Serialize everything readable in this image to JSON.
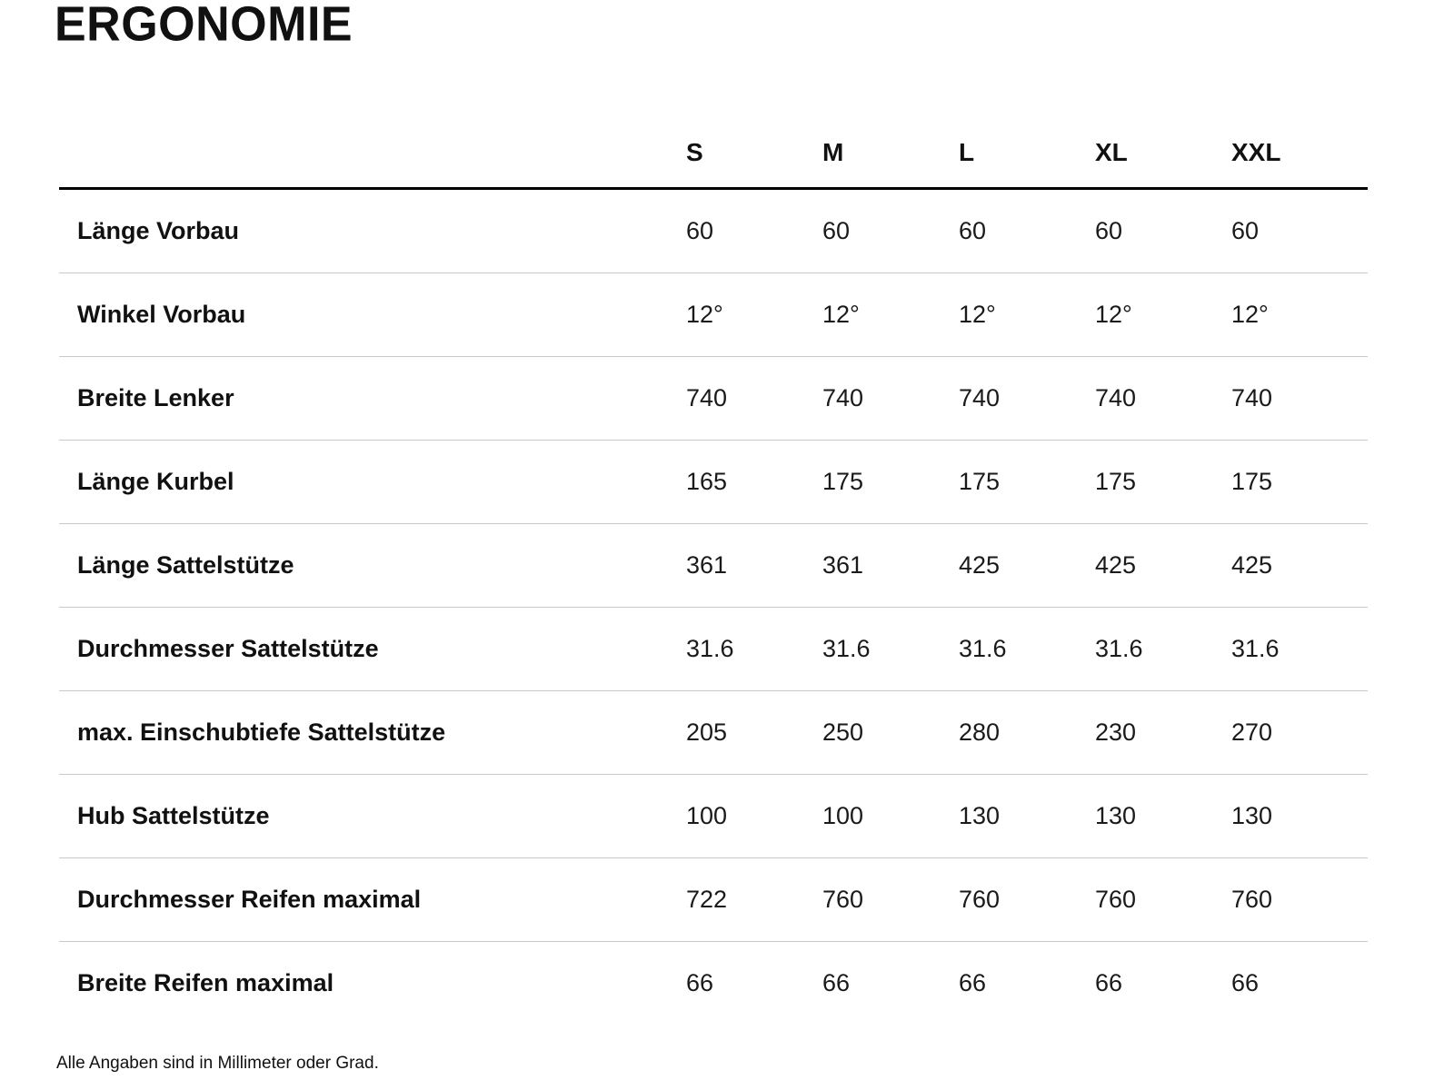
{
  "page": {
    "title": "ERGONOMIE",
    "footnote": "Alle Angaben sind in Millimeter oder Grad."
  },
  "table": {
    "columns": [
      "S",
      "M",
      "L",
      "XL",
      "XXL"
    ],
    "rows": [
      {
        "label": "Länge Vorbau",
        "values": [
          "60",
          "60",
          "60",
          "60",
          "60"
        ]
      },
      {
        "label": "Winkel Vorbau",
        "values": [
          "12°",
          "12°",
          "12°",
          "12°",
          "12°"
        ]
      },
      {
        "label": "Breite Lenker",
        "values": [
          "740",
          "740",
          "740",
          "740",
          "740"
        ]
      },
      {
        "label": "Länge Kurbel",
        "values": [
          "165",
          "175",
          "175",
          "175",
          "175"
        ]
      },
      {
        "label": "Länge Sattelstütze",
        "values": [
          "361",
          "361",
          "425",
          "425",
          "425"
        ]
      },
      {
        "label": "Durchmesser Sattelstütze",
        "values": [
          "31.6",
          "31.6",
          "31.6",
          "31.6",
          "31.6"
        ]
      },
      {
        "label": "max. Einschubtiefe Sattelstütze",
        "values": [
          "205",
          "250",
          "280",
          "230",
          "270"
        ]
      },
      {
        "label": "Hub Sattelstütze",
        "values": [
          "100",
          "100",
          "130",
          "130",
          "130"
        ]
      },
      {
        "label": "Durchmesser Reifen maximal",
        "values": [
          "722",
          "760",
          "760",
          "760",
          "760"
        ]
      },
      {
        "label": "Breite Reifen maximal",
        "values": [
          "66",
          "66",
          "66",
          "66",
          "66"
        ]
      }
    ]
  }
}
